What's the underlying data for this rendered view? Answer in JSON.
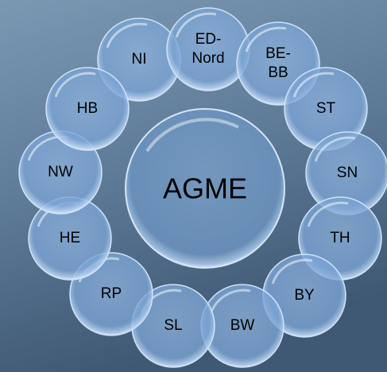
{
  "center": {
    "label": "AGME"
  },
  "nodes": [
    {
      "lines": [
        "NI"
      ]
    },
    {
      "lines": [
        "ED-",
        "Nord"
      ]
    },
    {
      "lines": [
        "BE-",
        "BB"
      ]
    },
    {
      "lines": [
        "ST"
      ]
    },
    {
      "lines": [
        "SN"
      ]
    },
    {
      "lines": [
        "TH"
      ]
    },
    {
      "lines": [
        "BY"
      ]
    },
    {
      "lines": [
        "BW"
      ]
    },
    {
      "lines": [
        "SL"
      ]
    },
    {
      "lines": [
        "RP"
      ]
    },
    {
      "lines": [
        "HE"
      ]
    },
    {
      "lines": [
        "NW"
      ]
    },
    {
      "lines": [
        "HB"
      ]
    }
  ]
}
